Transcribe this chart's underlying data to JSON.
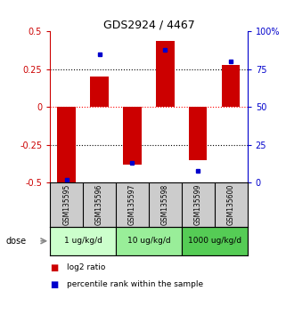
{
  "title": "GDS2924 / 4467",
  "samples": [
    "GSM135595",
    "GSM135596",
    "GSM135597",
    "GSM135598",
    "GSM135599",
    "GSM135600"
  ],
  "log2_ratios": [
    -0.5,
    0.2,
    -0.38,
    0.44,
    -0.35,
    0.28
  ],
  "percentile_ranks": [
    2,
    85,
    13,
    88,
    8,
    80
  ],
  "dose_groups": [
    {
      "label": "1 ug/kg/d",
      "samples": [
        0,
        1
      ],
      "color": "#ccffcc"
    },
    {
      "label": "10 ug/kg/d",
      "samples": [
        2,
        3
      ],
      "color": "#99ee99"
    },
    {
      "label": "1000 ug/kg/d",
      "samples": [
        4,
        5
      ],
      "color": "#55cc55"
    }
  ],
  "bar_color": "#cc0000",
  "dot_color": "#0000cc",
  "left_ylim": [
    -0.5,
    0.5
  ],
  "right_ylim": [
    0,
    100
  ],
  "left_yticks": [
    -0.5,
    -0.25,
    0,
    0.25,
    0.5
  ],
  "right_yticks": [
    0,
    25,
    50,
    75,
    100
  ],
  "left_yticklabels": [
    "-0.5",
    "-0.25",
    "0",
    "0.25",
    "0.5"
  ],
  "right_yticklabels": [
    "0",
    "25",
    "50",
    "75",
    "100%"
  ],
  "hlines": [
    -0.25,
    0,
    0.25
  ],
  "hline_colors": [
    "black",
    "red",
    "black"
  ],
  "hline_styles": [
    "dotted",
    "dotted",
    "dotted"
  ],
  "bg_color": "#ffffff",
  "sample_bg_color": "#cccccc",
  "legend_red_label": "log2 ratio",
  "legend_blue_label": "percentile rank within the sample",
  "dose_label": "dose"
}
